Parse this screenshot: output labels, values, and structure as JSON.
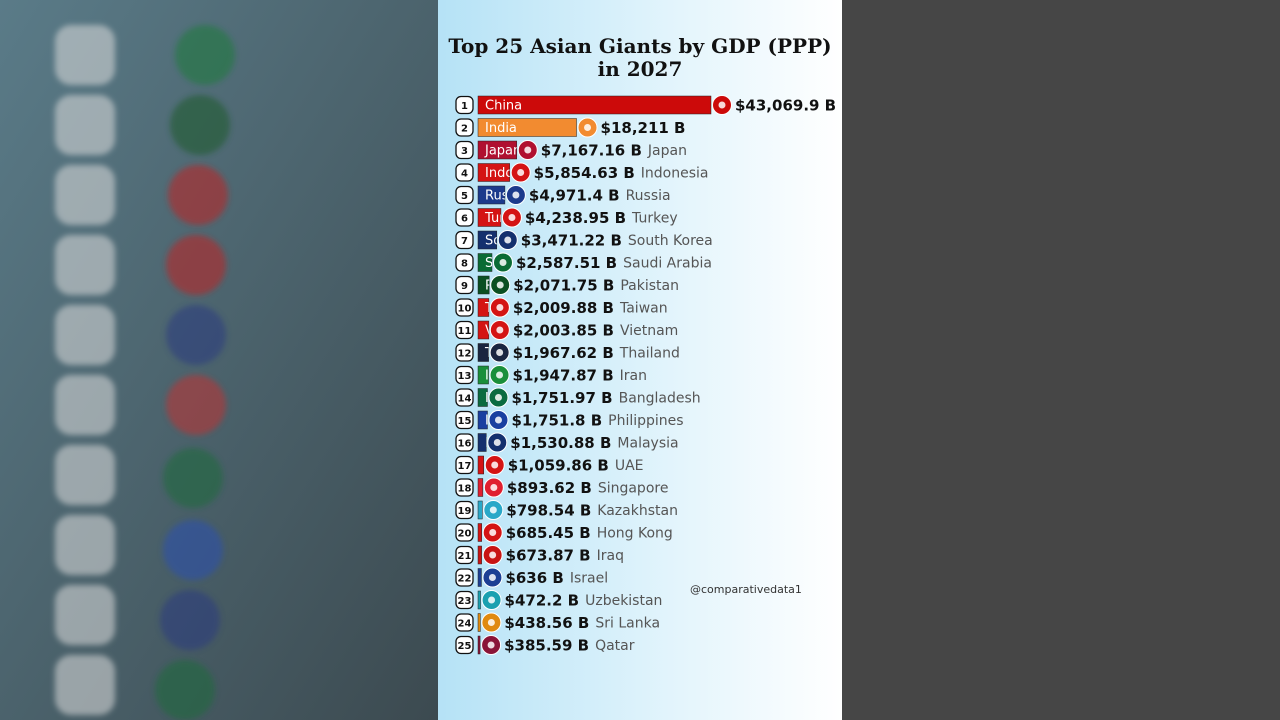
{
  "chart_data": {
    "type": "bar",
    "orientation": "horizontal",
    "title": "Top 25 Asian Giants by GDP (PPP) in 2027",
    "watermark": "@comparativedata1",
    "ranks": [
      1,
      2,
      3,
      4,
      5,
      6,
      7,
      8,
      9,
      10,
      11,
      12,
      13,
      14,
      15,
      16,
      17,
      18,
      19,
      20,
      21,
      22,
      23,
      24,
      25
    ],
    "categories": [
      "China",
      "India",
      "Japan",
      "Indonesia",
      "Russia",
      "Turkey",
      "South Korea",
      "Saudi Arabia",
      "Pakistan",
      "Taiwan",
      "Vietnam",
      "Thailand",
      "Iran",
      "Bangladesh",
      "Philippines",
      "Malaysia",
      "UAE",
      "Singapore",
      "Kazakhstan",
      "Hong Kong",
      "Iraq",
      "Israel",
      "Uzbekistan",
      "Sri Lanka",
      "Qatar"
    ],
    "values": [
      43069.9,
      18211,
      7167.16,
      5854.63,
      4971.4,
      4238.95,
      3471.22,
      2587.51,
      2071.75,
      2009.88,
      2003.85,
      1967.62,
      1947.87,
      1751.97,
      1751.8,
      1530.88,
      1059.86,
      893.62,
      798.54,
      685.45,
      673.87,
      636,
      472.2,
      438.56,
      385.59
    ],
    "value_labels": [
      "$43,069.9 B",
      "$18,211 B",
      "$7,167.16 B",
      "$5,854.63 B",
      "$4,971.4 B",
      "$4,238.95 B",
      "$3,471.22 B",
      "$2,587.51 B",
      "$2,071.75 B",
      "$2,009.88 B",
      "$2,003.85 B",
      "$1,967.62 B",
      "$1,947.87 B",
      "$1,751.97 B",
      "$1,751.8 B",
      "$1,530.88 B",
      "$1,059.86 B",
      "$893.62 B",
      "$798.54 B",
      "$685.45 B",
      "$673.87 B",
      "$636 B",
      "$472.2 B",
      "$438.56 B",
      "$385.59 B"
    ],
    "colors": [
      "#cc0a0a",
      "#f28b30",
      "#b01030",
      "#d41414",
      "#1c3a8c",
      "#d41414",
      "#14306e",
      "#0a6b34",
      "#0b4f22",
      "#d41414",
      "#d41414",
      "#1a2540",
      "#1a8f3a",
      "#0a6b40",
      "#1a3fa0",
      "#14306e",
      "#d41414",
      "#e02030",
      "#2aa8c8",
      "#d41414",
      "#c81414",
      "#1c3f94",
      "#1aa0b0",
      "#e08a10",
      "#8a1538"
    ]
  }
}
